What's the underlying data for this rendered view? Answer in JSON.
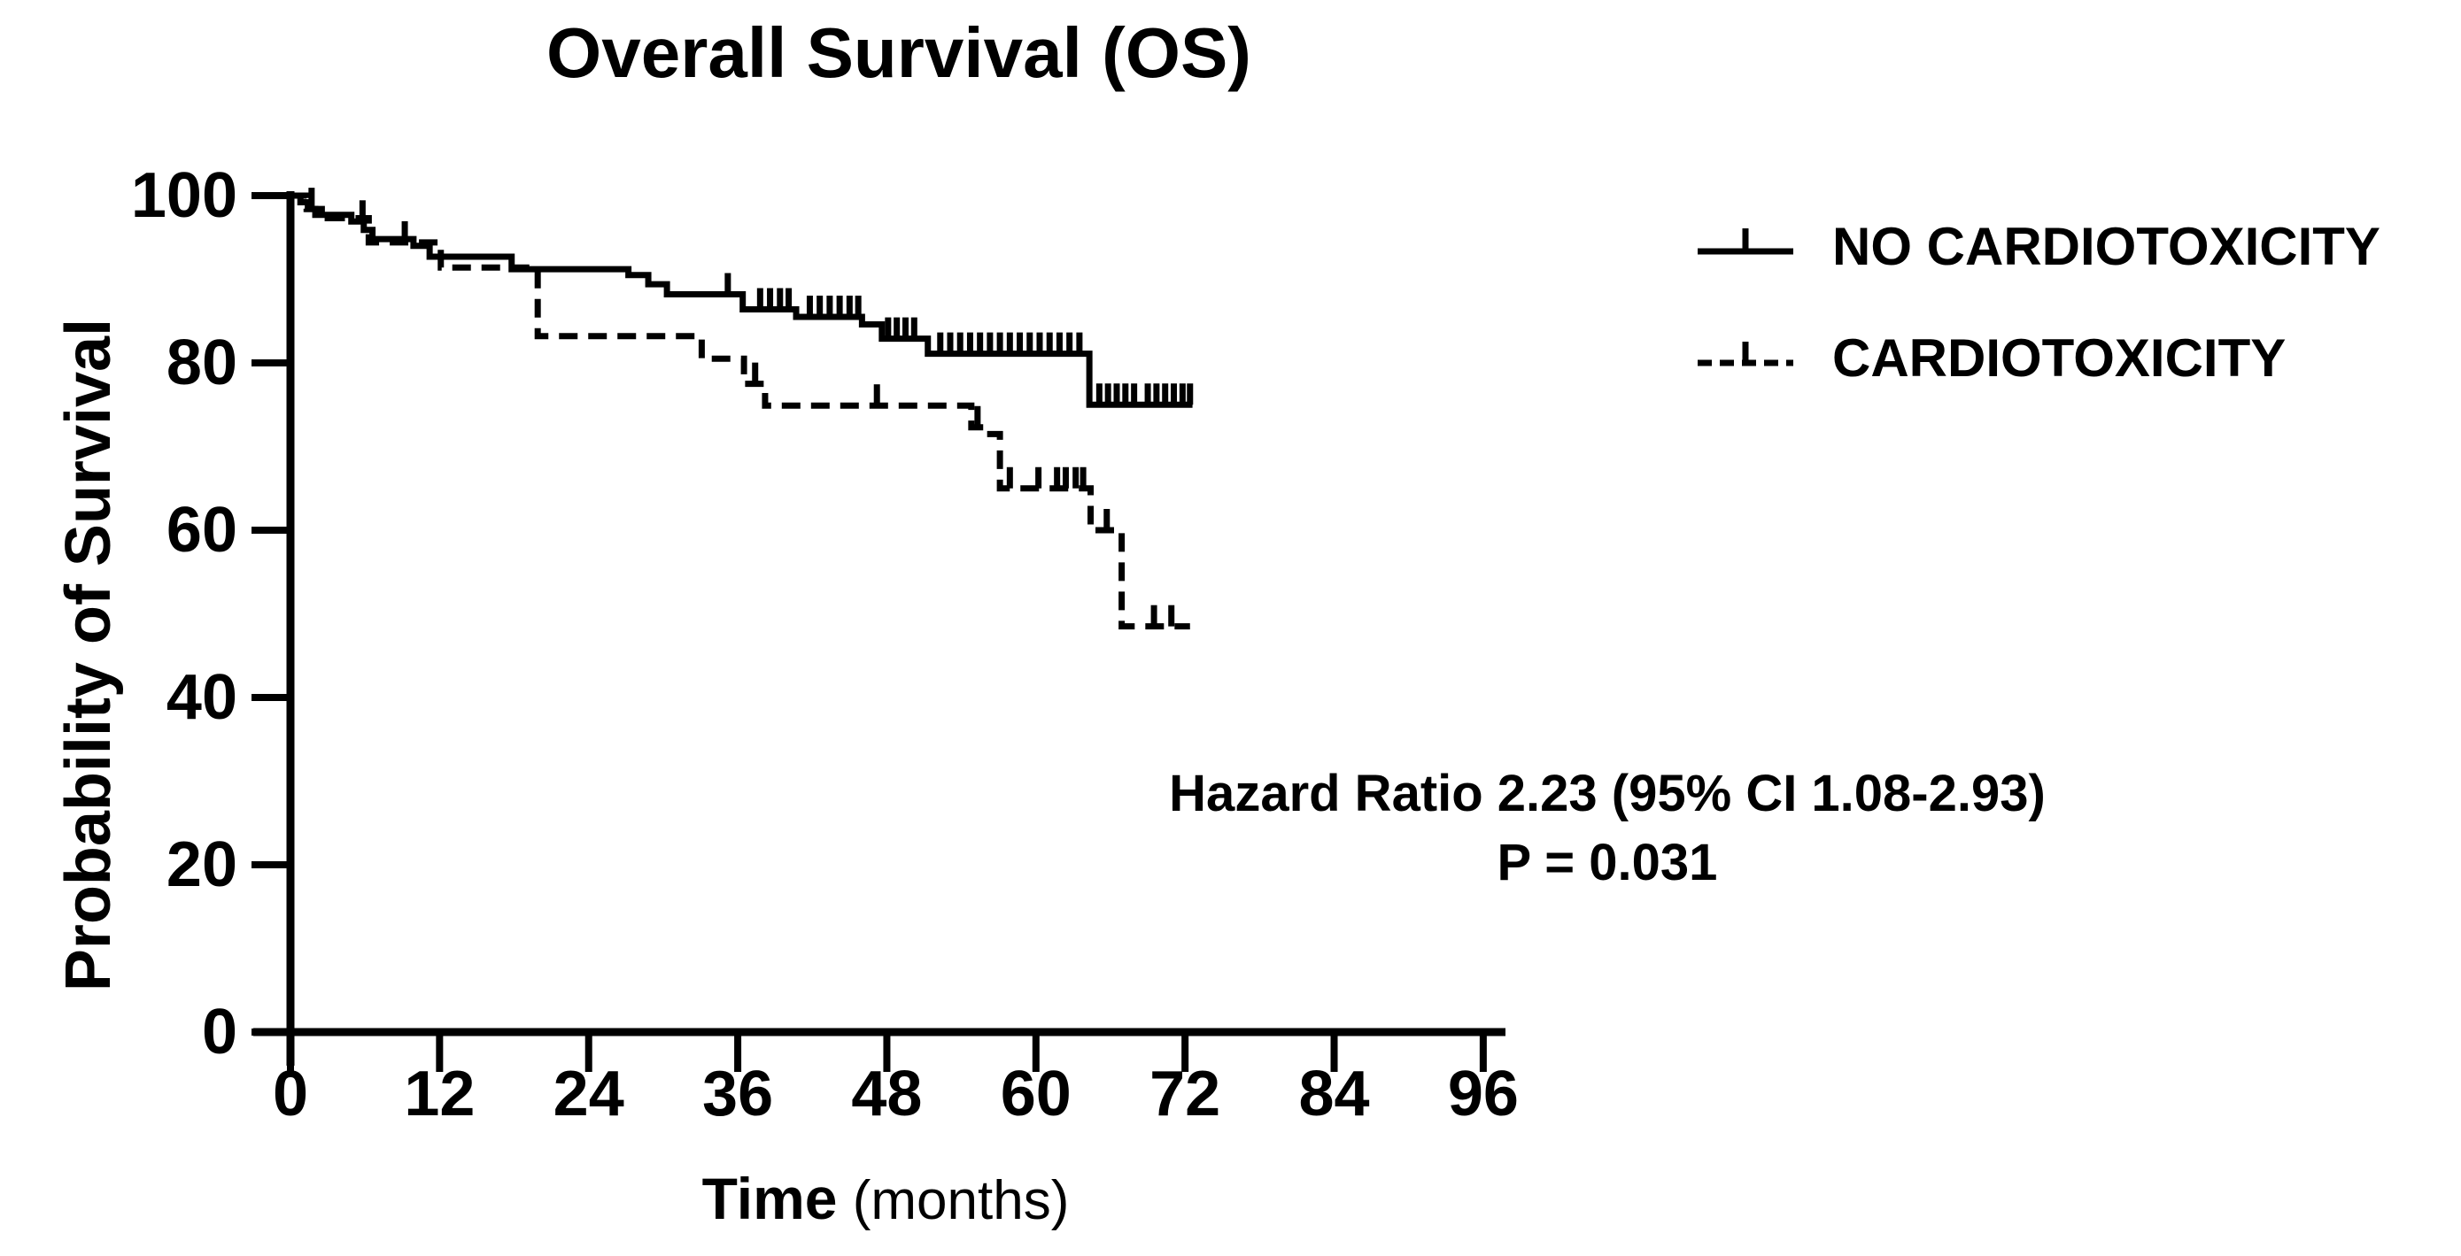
{
  "title": "Overall Survival (OS)",
  "colors": {
    "ink": "#000000",
    "background": "#ffffff"
  },
  "y_axis": {
    "label": "Probability of Survival",
    "ticks": [
      0,
      20,
      40,
      60,
      80,
      100
    ],
    "range": [
      0,
      100
    ]
  },
  "x_axis": {
    "label": "Time",
    "label_suffix": " (months)",
    "ticks": [
      0,
      12,
      24,
      36,
      48,
      60,
      72,
      84,
      96
    ],
    "range": [
      0,
      96
    ]
  },
  "legend": {
    "items": [
      {
        "label": "NO CARDIOTOXICITY",
        "style": "solid"
      },
      {
        "label": "CARDIOTOXICITY",
        "style": "dashed"
      }
    ]
  },
  "annotation": {
    "line1": "Hazard Ratio 2.23 (95% CI 1.08-2.93)",
    "line2": "P = 0.031"
  },
  "chart_data": {
    "type": "line",
    "subtype": "kaplan_meier_step",
    "title": "Overall Survival (OS)",
    "xlabel": "Time (months)",
    "ylabel": "Probability of Survival",
    "xlim": [
      0,
      98
    ],
    "ylim": [
      0,
      100
    ],
    "x_ticks": [
      0,
      12,
      24,
      36,
      48,
      60,
      72,
      84,
      96
    ],
    "y_ticks": [
      0,
      20,
      40,
      60,
      80,
      100
    ],
    "grid": false,
    "legend_position": "upper right outside",
    "series": [
      {
        "name": "NO CARDIOTOXICITY",
        "style": "solid",
        "color": "#000000",
        "steps": [
          [
            0,
            100
          ],
          [
            0.8,
            99.2
          ],
          [
            1.4,
            98.4
          ],
          [
            2,
            97.7
          ],
          [
            4.9,
            96.9
          ],
          [
            5.9,
            95.9
          ],
          [
            6.6,
            94.8
          ],
          [
            9.9,
            94.0
          ],
          [
            11.2,
            92.7
          ],
          [
            17.8,
            91.2
          ],
          [
            27.2,
            90.5
          ],
          [
            28.8,
            89.4
          ],
          [
            30.3,
            88.2
          ],
          [
            36.4,
            86.4
          ],
          [
            40.7,
            85.5
          ],
          [
            46,
            84.6
          ],
          [
            47.6,
            82.9
          ],
          [
            51.3,
            81.1
          ],
          [
            64.3,
            75.0
          ]
        ],
        "end_time": 72.6,
        "censors": [
          [
            5.8,
            96.9
          ],
          [
            35.2,
            88.2
          ],
          [
            37.8,
            86.4
          ],
          [
            38.6,
            86.4
          ],
          [
            39.4,
            86.4
          ],
          [
            40.1,
            86.4
          ],
          [
            41.8,
            85.5
          ],
          [
            42.6,
            85.5
          ],
          [
            43.4,
            85.5
          ],
          [
            44.2,
            85.5
          ],
          [
            45,
            85.5
          ],
          [
            45.7,
            85.5
          ],
          [
            48.1,
            82.9
          ],
          [
            48.8,
            82.9
          ],
          [
            49.5,
            82.9
          ],
          [
            50.2,
            82.9
          ],
          [
            52.3,
            81.1
          ],
          [
            53.1,
            81.1
          ],
          [
            53.9,
            81.1
          ],
          [
            54.7,
            81.1
          ],
          [
            55.5,
            81.1
          ],
          [
            56.3,
            81.1
          ],
          [
            57.1,
            81.1
          ],
          [
            57.9,
            81.1
          ],
          [
            58.7,
            81.1
          ],
          [
            59.5,
            81.1
          ],
          [
            60.3,
            81.1
          ],
          [
            61.1,
            81.1
          ],
          [
            61.9,
            81.1
          ],
          [
            62.7,
            81.1
          ],
          [
            63.5,
            81.1
          ],
          [
            65.1,
            75.0
          ],
          [
            65.8,
            75.0
          ],
          [
            66.5,
            75.0
          ],
          [
            67.2,
            75.0
          ],
          [
            67.9,
            75.0
          ],
          [
            69,
            75.0
          ],
          [
            69.7,
            75.0
          ],
          [
            70.4,
            75.0
          ],
          [
            71.1,
            75.0
          ],
          [
            71.8,
            75.0
          ],
          [
            72.4,
            75.0
          ]
        ]
      },
      {
        "name": "CARDIOTOXICITY",
        "style": "dashed",
        "color": "#000000",
        "steps": [
          [
            0,
            100
          ],
          [
            1.3,
            98.4
          ],
          [
            3,
            97.3
          ],
          [
            6.3,
            94.4
          ],
          [
            12.1,
            91.4
          ],
          [
            19.9,
            83.2
          ],
          [
            33.1,
            80.5
          ],
          [
            36.5,
            77.5
          ],
          [
            38.2,
            74.9
          ],
          [
            54.8,
            72.3
          ],
          [
            55.9,
            71.5
          ],
          [
            57.1,
            65.0
          ],
          [
            64.4,
            60.0
          ],
          [
            66.9,
            48.5
          ]
        ],
        "end_time": 72.4,
        "censors": [
          [
            1.7,
            98.4
          ],
          [
            9.2,
            94.4
          ],
          [
            37.4,
            77.5
          ],
          [
            47.2,
            74.9
          ],
          [
            55.3,
            72.3
          ],
          [
            57.9,
            65.0
          ],
          [
            60.2,
            65.0
          ],
          [
            61.7,
            65.0
          ],
          [
            62.4,
            65.0
          ],
          [
            63.2,
            65.0
          ],
          [
            63.8,
            65.0
          ],
          [
            65.7,
            60.0
          ],
          [
            69.5,
            48.5
          ],
          [
            70.9,
            48.5
          ]
        ]
      }
    ]
  }
}
